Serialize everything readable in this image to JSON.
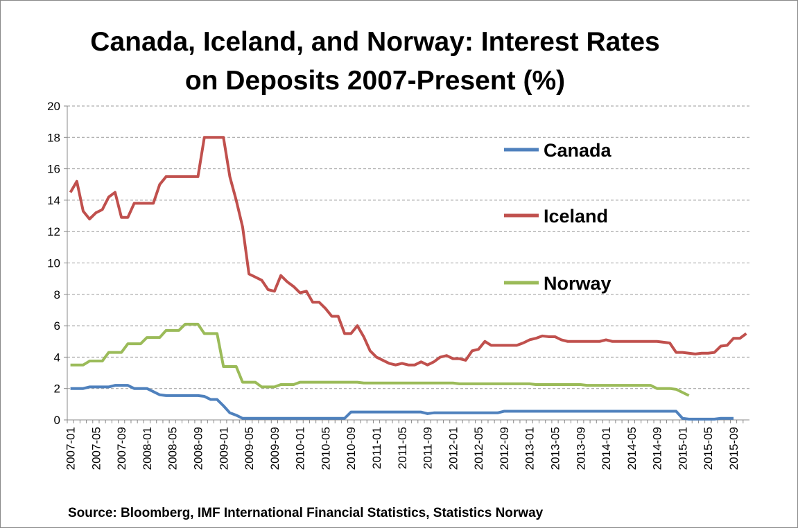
{
  "chart_data": {
    "type": "line",
    "title": [
      "Canada, Iceland, and Norway: Interest Rates",
      "on Deposits 2007-Present (%)"
    ],
    "source": "Source: Bloomberg, IMF International Financial Statistics, Statistics Norway",
    "categories": [
      "2007-01",
      null,
      null,
      null,
      "2007-05",
      null,
      null,
      null,
      "2007-09",
      null,
      null,
      null,
      "2008-01",
      null,
      null,
      null,
      "2008-05",
      null,
      null,
      null,
      "2008-09",
      null,
      null,
      null,
      "2009-01",
      null,
      null,
      null,
      "2009-05",
      null,
      null,
      null,
      "2009-09",
      null,
      null,
      null,
      "2010-01",
      null,
      null,
      null,
      "2010-05",
      null,
      null,
      null,
      "2010-09",
      null,
      null,
      null,
      "2011-01",
      null,
      null,
      null,
      "2011-05",
      null,
      null,
      null,
      "2011-09",
      null,
      null,
      null,
      "2012-01",
      null,
      null,
      null,
      "2012-05",
      null,
      null,
      null,
      "2012-09",
      null,
      null,
      null,
      "2013-01",
      null,
      null,
      null,
      "2013-05",
      null,
      null,
      null,
      "2013-09",
      null,
      null,
      null,
      "2014-01",
      null,
      null,
      null,
      "2014-05",
      null,
      null,
      null,
      "2014-09",
      null,
      null,
      null,
      "2015-01",
      null,
      null,
      null,
      "2015-05",
      null,
      null,
      null,
      "2015-09",
      null,
      null
    ],
    "series": [
      {
        "name": "Canada",
        "color": "#4f81bd",
        "values": [
          2.0,
          2.0,
          2.0,
          2.1,
          2.1,
          2.1,
          2.1,
          2.2,
          2.2,
          2.2,
          2.0,
          2.0,
          2.0,
          1.8,
          1.6,
          1.55,
          1.55,
          1.55,
          1.55,
          1.55,
          1.55,
          1.5,
          1.3,
          1.3,
          0.9,
          0.45,
          0.3,
          0.1,
          0.1,
          0.1,
          0.1,
          0.1,
          0.1,
          0.1,
          0.1,
          0.1,
          0.1,
          0.1,
          0.1,
          0.1,
          0.1,
          0.1,
          0.1,
          0.1,
          0.5,
          0.5,
          0.5,
          0.5,
          0.5,
          0.5,
          0.5,
          0.5,
          0.5,
          0.5,
          0.5,
          0.5,
          0.4,
          0.45,
          0.45,
          0.45,
          0.45,
          0.45,
          0.45,
          0.45,
          0.45,
          0.45,
          0.45,
          0.45,
          0.55,
          0.55,
          0.55,
          0.55,
          0.55,
          0.55,
          0.55,
          0.55,
          0.55,
          0.55,
          0.55,
          0.55,
          0.55,
          0.55,
          0.55,
          0.55,
          0.55,
          0.55,
          0.55,
          0.55,
          0.55,
          0.55,
          0.55,
          0.55,
          0.55,
          0.55,
          0.55,
          0.55,
          0.1,
          0.05,
          0.05,
          0.05,
          0.05,
          0.05,
          0.1,
          0.1,
          0.1,
          null,
          null
        ]
      },
      {
        "name": "Iceland",
        "color": "#c0504d",
        "values": [
          14.5,
          15.2,
          13.3,
          12.8,
          13.2,
          13.4,
          14.2,
          14.5,
          12.9,
          12.9,
          13.8,
          13.8,
          13.8,
          13.8,
          15.0,
          15.5,
          15.5,
          15.5,
          15.5,
          15.5,
          15.5,
          18.0,
          18.0,
          18.0,
          18.0,
          15.5,
          14.0,
          12.3,
          9.3,
          9.1,
          8.9,
          8.3,
          8.2,
          9.2,
          8.8,
          8.5,
          8.1,
          8.2,
          7.5,
          7.5,
          7.1,
          6.6,
          6.6,
          5.5,
          5.5,
          6.0,
          5.3,
          4.4,
          4.0,
          3.8,
          3.6,
          3.5,
          3.6,
          3.5,
          3.5,
          3.7,
          3.5,
          3.7,
          4.0,
          4.1,
          3.9,
          3.9,
          3.8,
          4.4,
          4.5,
          5.0,
          4.75,
          4.75,
          4.75,
          4.75,
          4.75,
          4.9,
          5.1,
          5.2,
          5.35,
          5.3,
          5.3,
          5.1,
          5.0,
          5.0,
          5.0,
          5.0,
          5.0,
          5.0,
          5.1,
          5.0,
          5.0,
          5.0,
          5.0,
          5.0,
          5.0,
          5.0,
          5.0,
          4.95,
          4.9,
          4.3,
          4.3,
          4.25,
          4.2,
          4.25,
          4.25,
          4.3,
          4.7,
          4.75,
          5.2,
          5.2,
          5.5
        ]
      },
      {
        "name": "Norway",
        "color": "#9bbb59",
        "values": [
          3.5,
          3.5,
          3.5,
          3.75,
          3.75,
          3.75,
          4.3,
          4.3,
          4.3,
          4.85,
          4.85,
          4.85,
          5.25,
          5.25,
          5.25,
          5.7,
          5.7,
          5.7,
          6.1,
          6.1,
          6.1,
          5.5,
          5.5,
          5.5,
          3.4,
          3.4,
          3.4,
          2.4,
          2.4,
          2.4,
          2.1,
          2.1,
          2.1,
          2.25,
          2.25,
          2.25,
          2.4,
          2.4,
          2.4,
          2.4,
          2.4,
          2.4,
          2.4,
          2.4,
          2.4,
          2.4,
          2.35,
          2.35,
          2.35,
          2.35,
          2.35,
          2.35,
          2.35,
          2.35,
          2.35,
          2.35,
          2.35,
          2.35,
          2.35,
          2.35,
          2.35,
          2.3,
          2.3,
          2.3,
          2.3,
          2.3,
          2.3,
          2.3,
          2.3,
          2.3,
          2.3,
          2.3,
          2.3,
          2.25,
          2.25,
          2.25,
          2.25,
          2.25,
          2.25,
          2.25,
          2.25,
          2.2,
          2.2,
          2.2,
          2.2,
          2.2,
          2.2,
          2.2,
          2.2,
          2.2,
          2.2,
          2.2,
          2.0,
          2.0,
          2.0,
          1.95,
          1.75,
          1.55,
          null,
          null,
          null,
          null,
          null,
          null,
          null,
          null,
          null
        ]
      }
    ],
    "ylim": [
      0,
      20
    ],
    "yticks": [
      0,
      2,
      4,
      6,
      8,
      10,
      12,
      14,
      16,
      18,
      20
    ],
    "grid": true,
    "legend": "upper right"
  }
}
